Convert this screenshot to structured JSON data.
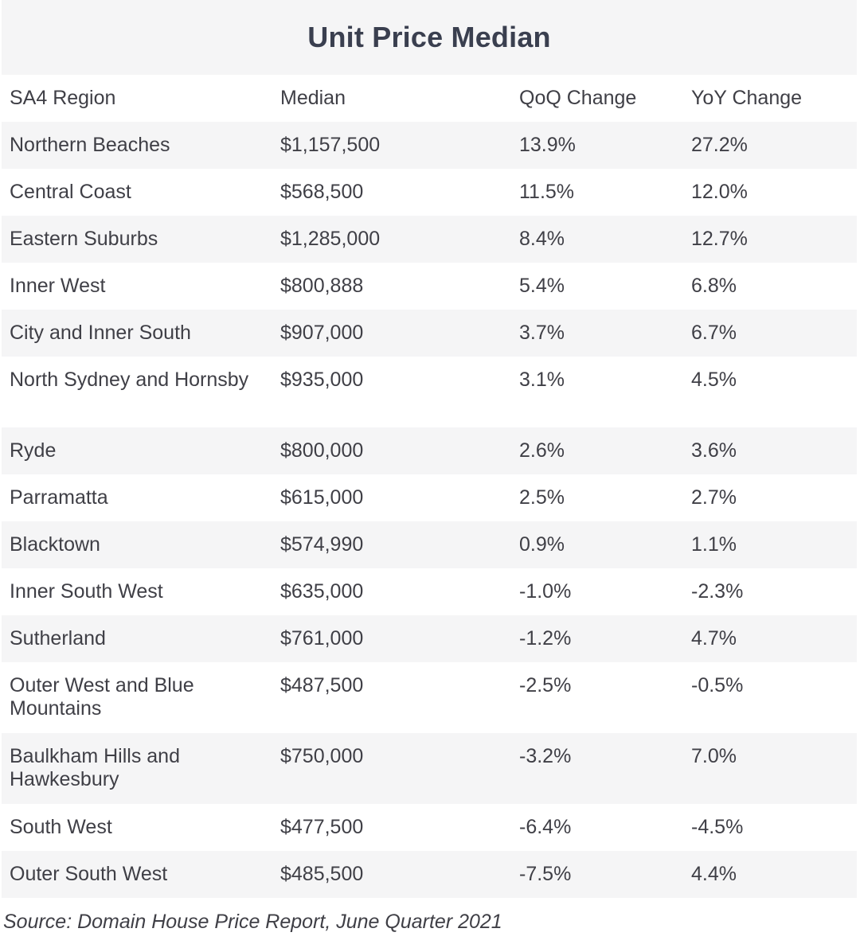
{
  "chart_data": {
    "type": "table",
    "title": "Unit Price Median",
    "columns": [
      "SA4 Region",
      "Median",
      "QoQ Change",
      "YoY Change"
    ],
    "rows": [
      [
        "Northern Beaches",
        "$1,157,500",
        "13.9%",
        "27.2%"
      ],
      [
        "Central Coast",
        "$568,500",
        "11.5%",
        "12.0%"
      ],
      [
        "Eastern Suburbs",
        "$1,285,000",
        "8.4%",
        "12.7%"
      ],
      [
        "Inner West",
        "$800,888",
        "5.4%",
        "6.8%"
      ],
      [
        "City and Inner South",
        "$907,000",
        "3.7%",
        "6.7%"
      ],
      [
        "North Sydney and Hornsby",
        "$935,000",
        "3.1%",
        "4.5%"
      ],
      [
        "Ryde",
        "$800,000",
        "2.6%",
        "3.6%"
      ],
      [
        "Parramatta",
        "$615,000",
        "2.5%",
        "2.7%"
      ],
      [
        "Blacktown",
        "$574,990",
        "0.9%",
        "1.1%"
      ],
      [
        "Inner South West",
        "$635,000",
        "-1.0%",
        "-2.3%"
      ],
      [
        "Sutherland",
        "$761,000",
        "-1.2%",
        "4.7%"
      ],
      [
        "Outer West and Blue Mountains",
        "$487,500",
        "-2.5%",
        "-0.5%"
      ],
      [
        "Baulkham Hills and Hawkesbury",
        "$750,000",
        "-3.2%",
        "7.0%"
      ],
      [
        "South West",
        "$477,500",
        "-6.4%",
        "-4.5%"
      ],
      [
        "Outer South West",
        "$485,500",
        "-7.5%",
        "4.4%"
      ]
    ],
    "source": "Source: Domain House Price Report, June Quarter 2021"
  },
  "colors": {
    "text": "#3f3f46",
    "title": "#3a3f4f",
    "row_shade": "#f5f5f6",
    "row_plain": "#ffffff"
  }
}
